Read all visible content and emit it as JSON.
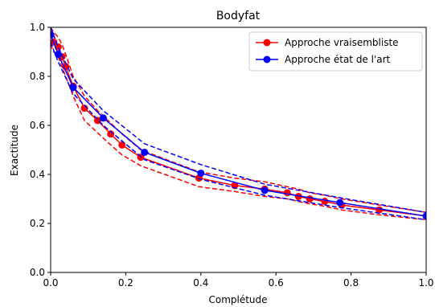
{
  "chart_data": {
    "type": "line",
    "title": "Bodyfat",
    "xlabel": "Complétude",
    "ylabel": "Exactitude",
    "xlim": [
      0,
      1
    ],
    "ylim": [
      0,
      1
    ],
    "xticks": [
      "0.0",
      "0.2",
      "0.4",
      "0.6",
      "0.8",
      "1.0"
    ],
    "yticks": [
      "0.0",
      "0.2",
      "0.4",
      "0.6",
      "0.8",
      "1.0"
    ],
    "grid": false,
    "legend_position": "top-right",
    "series": [
      {
        "name": "Approche vraisembliste",
        "color": "#ff0000",
        "x": [
          0.0,
          0.008,
          0.02,
          0.03,
          0.04,
          0.06,
          0.09,
          0.125,
          0.16,
          0.19,
          0.24,
          0.395,
          0.49,
          0.57,
          0.63,
          0.66,
          0.69,
          0.73,
          0.775,
          0.875,
          1.0
        ],
        "y": [
          0.97,
          0.94,
          0.92,
          0.88,
          0.84,
          0.76,
          0.67,
          0.62,
          0.565,
          0.52,
          0.47,
          0.385,
          0.355,
          0.34,
          0.325,
          0.31,
          0.3,
          0.29,
          0.275,
          0.255,
          0.23
        ],
        "upper": [
          1.0,
          0.98,
          0.96,
          0.93,
          0.89,
          0.8,
          0.72,
          0.66,
          0.61,
          0.565,
          0.5,
          0.41,
          0.385,
          0.37,
          0.35,
          0.34,
          0.325,
          0.315,
          0.3,
          0.275,
          0.245
        ],
        "lower": [
          0.93,
          0.9,
          0.88,
          0.84,
          0.8,
          0.72,
          0.62,
          0.57,
          0.52,
          0.48,
          0.435,
          0.35,
          0.33,
          0.31,
          0.3,
          0.29,
          0.28,
          0.27,
          0.255,
          0.235,
          0.215
        ]
      },
      {
        "name": "Approche état de l'art",
        "color": "#0000ff",
        "x": [
          0.0,
          0.02,
          0.06,
          0.14,
          0.25,
          0.4,
          0.57,
          0.77,
          1.0
        ],
        "y": [
          0.97,
          0.89,
          0.755,
          0.63,
          0.49,
          0.405,
          0.335,
          0.285,
          0.23
        ],
        "upper": [
          1.0,
          0.92,
          0.79,
          0.66,
          0.525,
          0.44,
          0.36,
          0.305,
          0.245
        ],
        "lower": [
          0.94,
          0.86,
          0.73,
          0.6,
          0.46,
          0.38,
          0.315,
          0.265,
          0.215
        ]
      }
    ]
  }
}
